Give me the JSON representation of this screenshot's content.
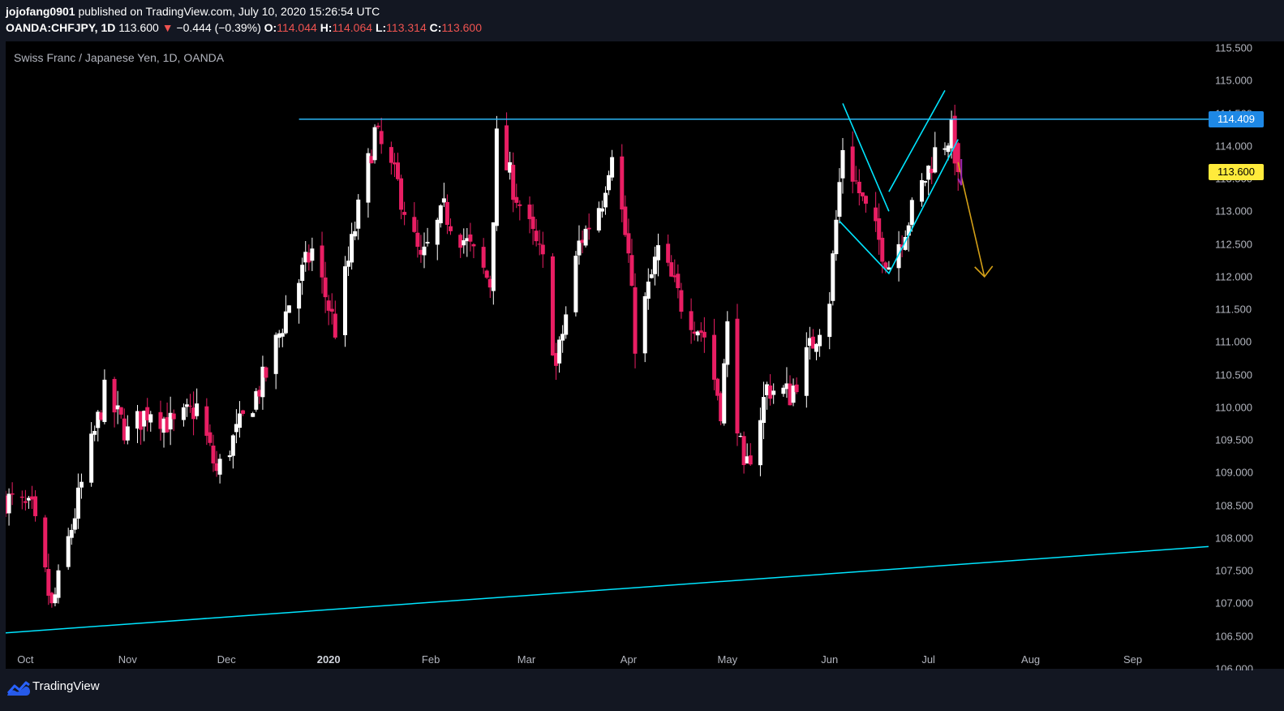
{
  "header": {
    "author": "jojofang0901",
    "published_text": "published on TradingView.com, July 10, 2020 15:26:54 UTC",
    "symbol": "OANDA:CHFJPY, 1D",
    "last_price": "113.600",
    "change_arrow": "▼",
    "change": "−0.444 (−0.39%)",
    "open_label": "O:",
    "open": "114.044",
    "high_label": "H:",
    "high": "114.064",
    "low_label": "L:",
    "low": "113.314",
    "close_label": "C:",
    "close": "113.600"
  },
  "footer": {
    "brand": "TradingView",
    "logo_icon": "tradingview-logo-icon"
  },
  "colors": {
    "up": "#ffffff",
    "down": "#e91e63",
    "trendline": "#00e5ff",
    "level_line": "#29b6f6",
    "projection_arrow": "#d4a017",
    "purple_mark": "#9c27b0",
    "level_tag": "#1e88e5",
    "last_tag": "#ffeb3b"
  },
  "chart_data": {
    "type": "candlestick",
    "title": "Swiss Franc / Japanese Yen, 1D, OANDA",
    "ylim": [
      106.0,
      115.6
    ],
    "yticks": [
      "106.000",
      "106.500",
      "107.000",
      "107.500",
      "108.000",
      "108.500",
      "109.000",
      "109.500",
      "110.000",
      "110.500",
      "111.000",
      "111.500",
      "112.000",
      "112.500",
      "113.000",
      "113.500",
      "114.000",
      "114.500",
      "115.000",
      "115.500"
    ],
    "xlim": [
      "2019-09-25",
      "2020-09-24"
    ],
    "xticks": [
      {
        "label": "Oct",
        "date": "2019-10-01",
        "bold": false
      },
      {
        "label": "Nov",
        "date": "2019-11-01",
        "bold": false
      },
      {
        "label": "Dec",
        "date": "2019-12-01",
        "bold": false
      },
      {
        "label": "2020",
        "date": "2020-01-01",
        "bold": true
      },
      {
        "label": "Feb",
        "date": "2020-02-01",
        "bold": false
      },
      {
        "label": "Mar",
        "date": "2020-03-01",
        "bold": false
      },
      {
        "label": "Apr",
        "date": "2020-04-01",
        "bold": false
      },
      {
        "label": "May",
        "date": "2020-05-01",
        "bold": false
      },
      {
        "label": "Jun",
        "date": "2020-06-01",
        "bold": false
      },
      {
        "label": "Jul",
        "date": "2020-07-01",
        "bold": false
      },
      {
        "label": "Aug",
        "date": "2020-08-01",
        "bold": false
      },
      {
        "label": "Sep",
        "date": "2020-09-01",
        "bold": false
      }
    ],
    "price_tags": [
      {
        "id": "level",
        "value": 114.409,
        "label": "114.409"
      },
      {
        "id": "last",
        "value": 113.6,
        "label": "113.600"
      }
    ],
    "anchors": [
      {
        "date": "2019-09-25",
        "close": 108.6
      },
      {
        "date": "2019-10-03",
        "close": 108.4
      },
      {
        "date": "2019-10-09",
        "close": 106.9
      },
      {
        "date": "2019-10-18",
        "close": 108.8
      },
      {
        "date": "2019-10-25",
        "close": 110.2
      },
      {
        "date": "2019-11-01",
        "close": 109.6
      },
      {
        "date": "2019-11-08",
        "close": 110.0
      },
      {
        "date": "2019-11-15",
        "close": 109.7
      },
      {
        "date": "2019-11-22",
        "close": 110.0
      },
      {
        "date": "2019-11-28",
        "close": 109.0
      },
      {
        "date": "2019-12-06",
        "close": 109.8
      },
      {
        "date": "2019-12-13",
        "close": 110.5
      },
      {
        "date": "2019-12-20",
        "close": 111.6
      },
      {
        "date": "2019-12-27",
        "close": 112.4
      },
      {
        "date": "2020-01-03",
        "close": 111.2
      },
      {
        "date": "2020-01-10",
        "close": 113.0
      },
      {
        "date": "2020-01-15",
        "close": 114.2
      },
      {
        "date": "2020-01-22",
        "close": 113.4
      },
      {
        "date": "2020-01-29",
        "close": 112.2
      },
      {
        "date": "2020-02-05",
        "close": 113.0
      },
      {
        "date": "2020-02-12",
        "close": 112.5
      },
      {
        "date": "2020-02-19",
        "close": 111.9
      },
      {
        "date": "2020-02-21",
        "close": 114.1
      },
      {
        "date": "2020-02-28",
        "close": 113.1
      },
      {
        "date": "2020-03-06",
        "close": 112.2
      },
      {
        "date": "2020-03-10",
        "close": 110.6
      },
      {
        "date": "2020-03-17",
        "close": 112.5
      },
      {
        "date": "2020-03-24",
        "close": 113.2
      },
      {
        "date": "2020-03-27",
        "close": 114.0
      },
      {
        "date": "2020-04-01",
        "close": 112.3
      },
      {
        "date": "2020-04-03",
        "close": 111.0
      },
      {
        "date": "2020-04-10",
        "close": 112.4
      },
      {
        "date": "2020-04-17",
        "close": 111.6
      },
      {
        "date": "2020-04-24",
        "close": 111.1
      },
      {
        "date": "2020-04-29",
        "close": 110.0
      },
      {
        "date": "2020-05-01",
        "close": 111.2
      },
      {
        "date": "2020-05-06",
        "close": 108.9
      },
      {
        "date": "2020-05-13",
        "close": 110.3
      },
      {
        "date": "2020-05-20",
        "close": 110.2
      },
      {
        "date": "2020-05-27",
        "close": 111.0
      },
      {
        "date": "2020-06-01",
        "close": 111.7
      },
      {
        "date": "2020-06-05",
        "close": 114.0
      },
      {
        "date": "2020-06-12",
        "close": 113.0
      },
      {
        "date": "2020-06-19",
        "close": 112.2
      },
      {
        "date": "2020-06-26",
        "close": 113.0
      },
      {
        "date": "2020-07-03",
        "close": 113.9
      },
      {
        "date": "2020-07-08",
        "close": 114.2
      },
      {
        "date": "2020-07-10",
        "close": 113.6
      }
    ],
    "drawings": {
      "horizontal_level": {
        "value": 114.409,
        "from": "2019-12-23",
        "to": "2020-09-24"
      },
      "rising_trendline": {
        "from": {
          "date": "2019-09-25",
          "value": 106.55
        },
        "to": {
          "date": "2020-09-24",
          "value": 107.87
        }
      },
      "w_pattern_right": [
        {
          "date": "2020-06-05",
          "value": 114.65
        },
        {
          "date": "2020-06-19",
          "value": 113.0
        },
        {
          "date": "2020-06-19",
          "value": 113.3
        },
        {
          "date": "2020-07-06",
          "value": 114.85
        }
      ],
      "w_pattern_left": [
        {
          "date": "2020-06-04",
          "value": 112.85
        },
        {
          "date": "2020-06-19",
          "value": 112.05
        },
        {
          "date": "2020-07-10",
          "value": 114.1
        }
      ],
      "projection_arrow": {
        "from": {
          "date": "2020-07-10",
          "value": 113.75
        },
        "to": {
          "date": "2020-07-18",
          "value": 112.0
        }
      }
    }
  }
}
